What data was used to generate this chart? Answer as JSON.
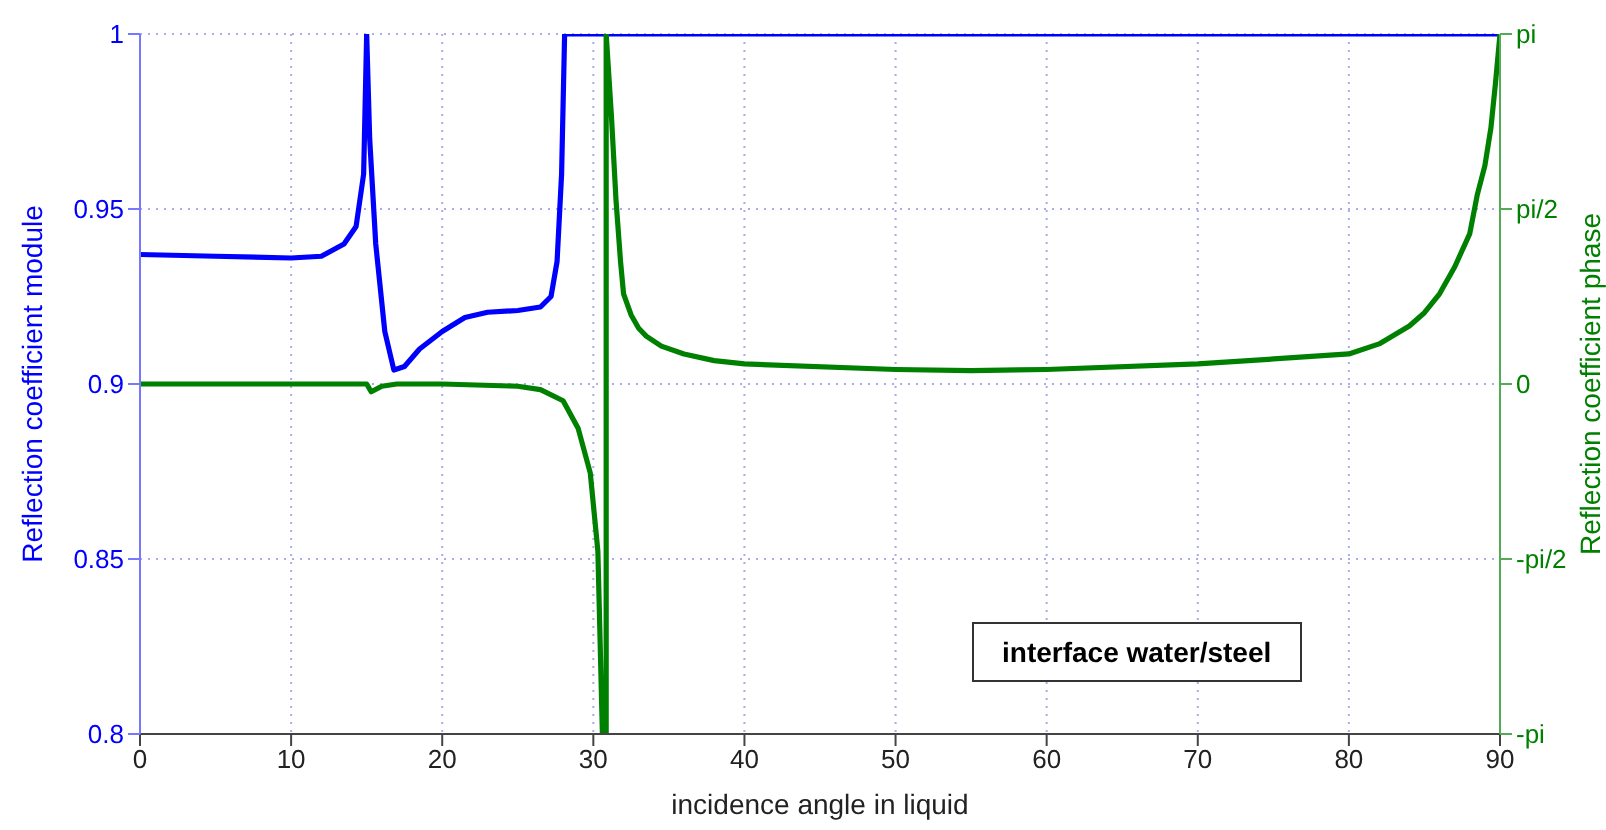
{
  "chart_data": {
    "type": "line",
    "xlabel": "incidence angle in liquid",
    "ylabel": "Reflection coefficient module",
    "y2label": "Reflection coefficient phase",
    "xlim": [
      0,
      90
    ],
    "xticks": [
      0,
      10,
      20,
      30,
      40,
      50,
      60,
      70,
      80,
      90
    ],
    "ylim": [
      0.8,
      1
    ],
    "yticks": [
      0.8,
      0.85,
      0.9,
      0.95,
      1
    ],
    "y2lim": [
      -3.1416,
      3.1416
    ],
    "y2ticks": [
      {
        "value": -3.1416,
        "label": "-pi"
      },
      {
        "value": -1.5708,
        "label": "-pi/2"
      },
      0,
      {
        "value": 1.5708,
        "label": "pi/2"
      },
      {
        "value": 3.1416,
        "label": "pi"
      }
    ],
    "grid": true,
    "legend": false,
    "marker": "none",
    "line_style": "solid",
    "annotations": [
      "interface water/steel"
    ],
    "series": [
      {
        "color": "#0000ff",
        "x": [
          0,
          5,
          10,
          12,
          13.5,
          14.3,
          14.8,
          15,
          15.2,
          15.6,
          16.2,
          16.8,
          17.5,
          18.5,
          20,
          21.5,
          23,
          25,
          26.5,
          27.2,
          27.6,
          27.9,
          28.1,
          90
        ],
        "values": [
          0.937,
          0.9365,
          0.936,
          0.9365,
          0.94,
          0.945,
          0.96,
          1,
          0.97,
          0.94,
          0.915,
          0.904,
          0.905,
          0.91,
          0.915,
          0.919,
          0.9205,
          0.921,
          0.922,
          0.925,
          0.935,
          0.96,
          1,
          1
        ]
      },
      {
        "color": "#008000",
        "axis": "y2",
        "x": [
          0,
          10,
          15,
          15.3,
          16,
          17,
          20,
          25,
          26.5,
          28,
          29,
          29.8,
          30.3,
          30.6,
          30.85,
          30.85,
          31.2,
          31.5,
          31.8,
          32,
          32.5,
          33,
          33.5,
          34.5,
          36,
          38,
          40,
          50,
          55,
          60,
          70,
          80,
          82,
          84,
          85,
          86,
          87,
          88,
          88.5,
          89,
          89.4,
          89.7,
          90
        ],
        "values": [
          0,
          0,
          0,
          -0.07,
          -0.02,
          0,
          0,
          -0.02,
          -0.05,
          -0.15,
          -0.4,
          -0.8,
          -1.5,
          -3.14,
          -3.14,
          3.14,
          2.4,
          1.65,
          1.1,
          0.81,
          0.62,
          0.5,
          0.43,
          0.34,
          0.27,
          0.21,
          0.18,
          0.13,
          0.12,
          0.13,
          0.18,
          0.27,
          0.36,
          0.52,
          0.64,
          0.81,
          1.05,
          1.35,
          1.7,
          1.96,
          2.3,
          2.7,
          3.14
        ]
      }
    ]
  }
}
